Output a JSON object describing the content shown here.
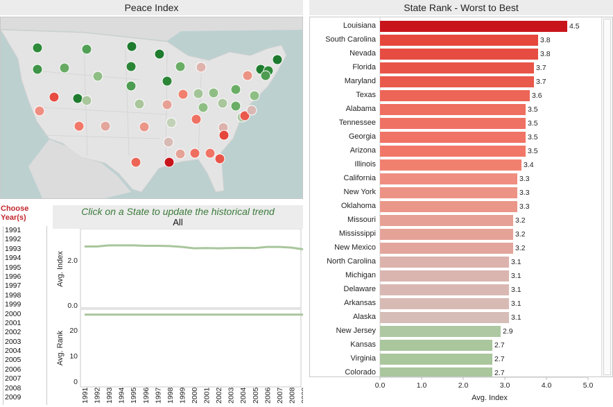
{
  "map_title": "Peace Index",
  "rank_title": "State Rank - Worst to Best",
  "rank_colors": {
    "worst": "#c8151b",
    "mid": "#d9bcbc",
    "best": "#a9c79a"
  },
  "states": [
    {
      "name": "Louisiana",
      "value": 4.5,
      "label": "4.5",
      "color": "#c8151b"
    },
    {
      "name": "South Carolina",
      "value": 3.8,
      "label": "3.8",
      "color": "#e5473d"
    },
    {
      "name": "Nevada",
      "value": 3.8,
      "label": "3.8",
      "color": "#e64c42"
    },
    {
      "name": "Florida",
      "value": 3.7,
      "label": "3.7",
      "color": "#e85548"
    },
    {
      "name": "Maryland",
      "value": 3.7,
      "label": "3.7",
      "color": "#e9594c"
    },
    {
      "name": "Texas",
      "value": 3.6,
      "label": "3.6",
      "color": "#ec6557"
    },
    {
      "name": "Alabama",
      "value": 3.5,
      "label": "3.5",
      "color": "#ee6e60"
    },
    {
      "name": "Tennessee",
      "value": 3.5,
      "label": "3.5",
      "color": "#ef7163"
    },
    {
      "name": "Georgia",
      "value": 3.5,
      "label": "3.5",
      "color": "#f07466"
    },
    {
      "name": "Arizona",
      "value": 3.5,
      "label": "3.5",
      "color": "#f17868"
    },
    {
      "name": "Illinois",
      "value": 3.4,
      "label": "3.4",
      "color": "#f2806f"
    },
    {
      "name": "California",
      "value": 3.3,
      "label": "3.3",
      "color": "#ef8e80"
    },
    {
      "name": "New York",
      "value": 3.3,
      "label": "3.3",
      "color": "#ec9385"
    },
    {
      "name": "Oklahoma",
      "value": 3.3,
      "label": "3.3",
      "color": "#ea9789"
    },
    {
      "name": "Missouri",
      "value": 3.2,
      "label": "3.2",
      "color": "#e7a095"
    },
    {
      "name": "Mississippi",
      "value": 3.2,
      "label": "3.2",
      "color": "#e5a398"
    },
    {
      "name": "New Mexico",
      "value": 3.2,
      "label": "3.2",
      "color": "#e2a69c"
    },
    {
      "name": "North Carolina",
      "value": 3.1,
      "label": "3.1",
      "color": "#dcb2ac"
    },
    {
      "name": "Michigan",
      "value": 3.1,
      "label": "3.1",
      "color": "#dab5b0"
    },
    {
      "name": "Delaware",
      "value": 3.1,
      "label": "3.1",
      "color": "#d9b8b3"
    },
    {
      "name": "Arkansas",
      "value": 3.1,
      "label": "3.1",
      "color": "#d8bab5"
    },
    {
      "name": "Alaska",
      "value": 3.1,
      "label": "3.1",
      "color": "#d6bdb8"
    },
    {
      "name": "New Jersey",
      "value": 2.9,
      "label": "2.9",
      "color": "#adc8a2"
    },
    {
      "name": "Kansas",
      "value": 2.7,
      "label": "2.7",
      "color": "#a9c69c"
    },
    {
      "name": "Virginia",
      "value": 2.7,
      "label": "2.7",
      "color": "#a9c69c"
    },
    {
      "name": "Colorado",
      "value": 2.7,
      "label": "2.7",
      "color": "#a9c69c"
    }
  ],
  "rank_axis": {
    "label": "Avg. Index",
    "ticks": [
      "0.0",
      "1.0",
      "2.0",
      "3.0",
      "4.0",
      "5.0"
    ],
    "max": 5.0
  },
  "year_filter": {
    "title": "Choose Year(s)",
    "years": [
      "1991",
      "1992",
      "1993",
      "1994",
      "1995",
      "1996",
      "1997",
      "1998",
      "1999",
      "2000",
      "2001",
      "2002",
      "2003",
      "2004",
      "2005",
      "2006",
      "2007",
      "2008",
      "2009"
    ]
  },
  "trend": {
    "instruction": "Click on a State to update the historical trend",
    "selection": "All",
    "line_color": "#a9c69c",
    "years": [
      "1991",
      "1992",
      "1993",
      "1994",
      "1995",
      "1996",
      "1997",
      "1998",
      "1999",
      "2000",
      "2001",
      "2002",
      "2003",
      "2004",
      "2005",
      "2006",
      "2007",
      "2008",
      "2009"
    ],
    "index_values": [
      2.6,
      2.6,
      2.65,
      2.65,
      2.65,
      2.63,
      2.63,
      2.62,
      2.58,
      2.52,
      2.53,
      2.52,
      2.53,
      2.54,
      2.53,
      2.58,
      2.58,
      2.55,
      2.47
    ],
    "index_axis": {
      "label": "Avg. Index",
      "ticks": [
        "0.0",
        "2.0"
      ],
      "max": 3.2
    },
    "rank_values": [
      26,
      26,
      26,
      26,
      26,
      26,
      26,
      26,
      26,
      26,
      26,
      26,
      26,
      26,
      26,
      26,
      26,
      26,
      26
    ],
    "rank_axis": {
      "label": "Avg. Rank",
      "ticks": [
        "0",
        "10",
        "20"
      ],
      "max": 27
    }
  },
  "map_markers": [
    {
      "state": "Washington",
      "color": "#2e8b3a"
    },
    {
      "state": "Montana",
      "color": "#52a055"
    },
    {
      "state": "North Dakota",
      "color": "#1d7a2e"
    },
    {
      "state": "Minnesota",
      "color": "#1f7c2f"
    },
    {
      "state": "Oregon",
      "color": "#3f9447"
    },
    {
      "state": "Idaho",
      "color": "#67ab63"
    },
    {
      "state": "Wyoming",
      "color": "#8fbe85"
    },
    {
      "state": "South Dakota",
      "color": "#2b8537"
    },
    {
      "state": "Wisconsin",
      "color": "#6aae66"
    },
    {
      "state": "Michigan",
      "color": "#dfb2ac"
    },
    {
      "state": "Vermont",
      "color": "#1f7c2f"
    },
    {
      "state": "Maine",
      "color": "#1d7a2e"
    },
    {
      "state": "New Hampshire",
      "color": "#2e8b3a"
    },
    {
      "state": "Massachusetts",
      "color": "#4e9c51"
    },
    {
      "state": "New York",
      "color": "#ec9385"
    },
    {
      "state": "Rhode Island",
      "color": "#8fbe85"
    },
    {
      "state": "Connecticut",
      "color": "#6aae66"
    },
    {
      "state": "Iowa",
      "color": "#2b8537"
    },
    {
      "state": "Nebraska",
      "color": "#4e9c51"
    },
    {
      "state": "Nevada",
      "color": "#e64c42"
    },
    {
      "state": "Utah",
      "color": "#1f7c2f"
    },
    {
      "state": "Illinois",
      "color": "#f2806f"
    },
    {
      "state": "Indiana",
      "color": "#a3c497"
    },
    {
      "state": "Ohio",
      "color": "#8fbe85"
    },
    {
      "state": "Pennsylvania",
      "color": "#6aae66"
    },
    {
      "state": "New Jersey",
      "color": "#adc8a2"
    },
    {
      "state": "California",
      "color": "#ef8e80"
    },
    {
      "state": "Colorado",
      "color": "#a9c69c"
    },
    {
      "state": "Kansas",
      "color": "#a9c69c"
    },
    {
      "state": "Missouri",
      "color": "#e7a095"
    },
    {
      "state": "West Virginia",
      "color": "#8fbe85"
    },
    {
      "state": "Virginia",
      "color": "#a9c69c"
    },
    {
      "state": "Kentucky",
      "color": "#c2d2b8"
    },
    {
      "state": "Maryland",
      "color": "#e9594c"
    },
    {
      "state": "Delaware",
      "color": "#d9b8b3"
    },
    {
      "state": "Arizona",
      "color": "#f17868"
    },
    {
      "state": "New Mexico",
      "color": "#e2a69c"
    },
    {
      "state": "Oklahoma",
      "color": "#ea9789"
    },
    {
      "state": "Tennessee",
      "color": "#ef7163"
    },
    {
      "state": "North Carolina",
      "color": "#dcb2ac"
    },
    {
      "state": "Arkansas",
      "color": "#d8bab5"
    },
    {
      "state": "South Carolina",
      "color": "#e5473d"
    },
    {
      "state": "Mississippi",
      "color": "#e5a398"
    },
    {
      "state": "Alabama",
      "color": "#ee6e60"
    },
    {
      "state": "Georgia",
      "color": "#f07466"
    },
    {
      "state": "Texas",
      "color": "#ec6557"
    },
    {
      "state": "Louisiana",
      "color": "#c8151b"
    },
    {
      "state": "Florida",
      "color": "#e85548"
    }
  ]
}
